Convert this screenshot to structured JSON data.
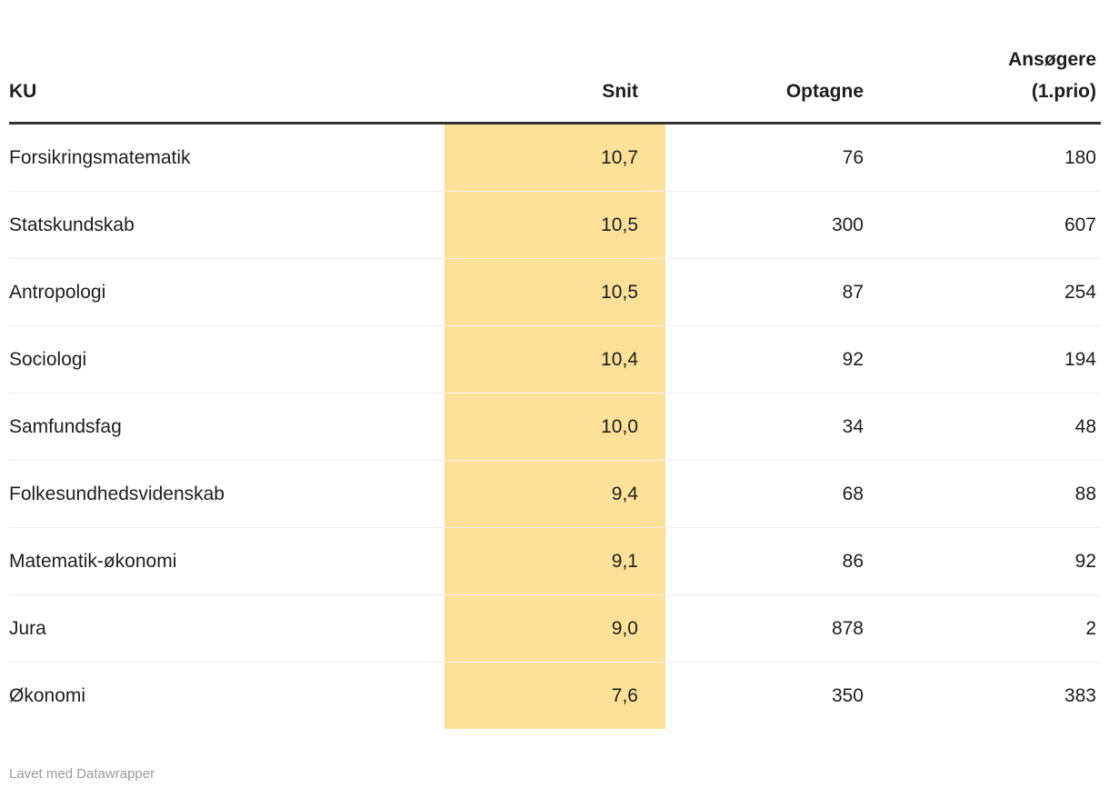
{
  "chart_data": {
    "type": "table",
    "title": "",
    "columns": [
      "KU",
      "Snit",
      "Optagne",
      "Ansøgere (1.prio)"
    ],
    "rows": [
      [
        "Forsikringsmatematik",
        "10,7",
        "76",
        "180"
      ],
      [
        "Statskundskab",
        "10,5",
        "300",
        "607"
      ],
      [
        "Antropologi",
        "10,5",
        "87",
        "254"
      ],
      [
        "Sociologi",
        "10,4",
        "92",
        "194"
      ],
      [
        "Samfundsfag",
        "10,0",
        "34",
        "48"
      ],
      [
        "Folkesundhedsvidenskab",
        "9,4",
        "68",
        "88"
      ],
      [
        "Matematik-økonomi",
        "9,1",
        "86",
        "92"
      ],
      [
        "Jura",
        "9,0",
        "878",
        "2"
      ],
      [
        "Økonomi",
        "7,6",
        "350",
        "383"
      ]
    ],
    "highlighted_column": "Snit",
    "highlight_color": "#fde199",
    "layout_hints": {
      "header_rule_color": "#333333",
      "row_separator_color": "#eeeeee",
      "numeric_columns_right_aligned": true
    }
  },
  "header_display": {
    "col4_line1": "Ansøgere",
    "col4_line2": "(1.prio)"
  },
  "footer": {
    "attribution": "Lavet med Datawrapper"
  }
}
